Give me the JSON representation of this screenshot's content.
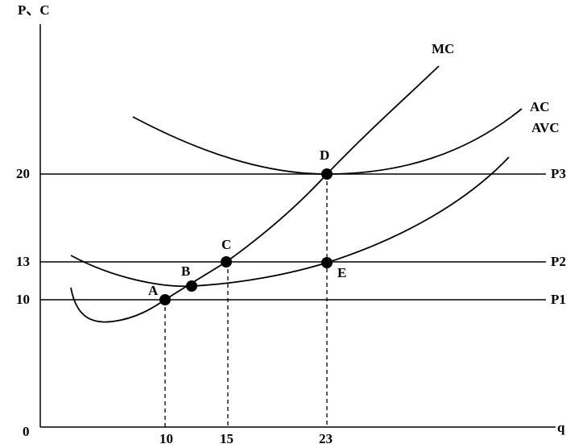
{
  "axes": {
    "y_label": "P、C",
    "x_label": "q",
    "origin": "0",
    "x_ticks": [
      "10",
      "15",
      "23"
    ],
    "y_ticks": [
      "20",
      "13",
      "10"
    ]
  },
  "curves": [
    "MC",
    "AC",
    "AVC"
  ],
  "price_lines": [
    "P3",
    "P2",
    "P1"
  ],
  "points": [
    "A",
    "B",
    "C",
    "D",
    "E"
  ]
}
